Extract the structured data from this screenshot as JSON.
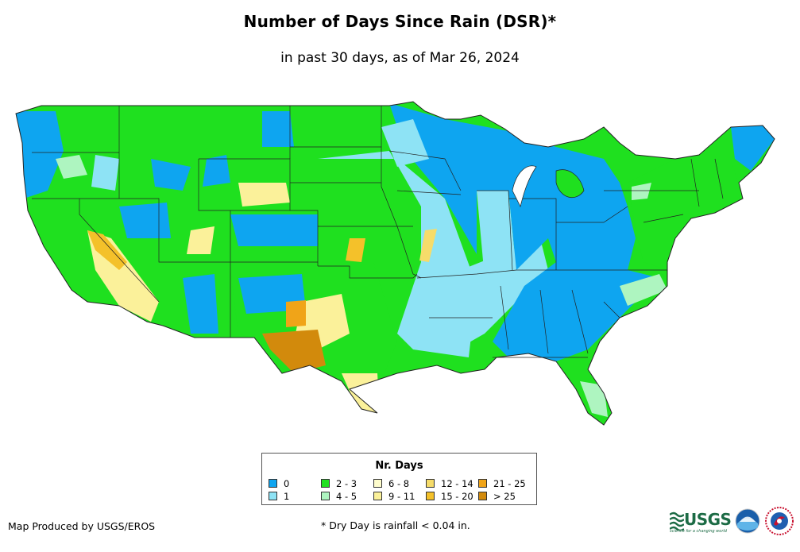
{
  "title": "Number of Days Since Rain (DSR)*",
  "subtitle": "in past 30 days, as of Mar 26, 2024",
  "legend": {
    "title": "Nr. Days",
    "items": [
      {
        "label": "0",
        "color": "#0ea5f0"
      },
      {
        "label": "1",
        "color": "#8ee3f5"
      },
      {
        "label": "2 - 3",
        "color": "#1fe01f"
      },
      {
        "label": "4 - 5",
        "color": "#aef5c0"
      },
      {
        "label": "6 - 8",
        "color": "#fefccc"
      },
      {
        "label": "9 - 11",
        "color": "#fbf19a"
      },
      {
        "label": "12 - 14",
        "color": "#f6dc6a"
      },
      {
        "label": "15 - 20",
        "color": "#f4c12a"
      },
      {
        "label": "21 - 25",
        "color": "#f0a418"
      },
      {
        "label": "> 25",
        "color": "#d28a0c"
      }
    ]
  },
  "credit": "Map Produced by USGS/EROS",
  "footnote": "* Dry Day is rainfall < 0.04 in.",
  "logos": {
    "usgs": "USGS",
    "usgs_tagline": "science for a changing world",
    "noaa_icon": "noaa-logo-icon",
    "nws_icon": "nws-logo-icon"
  }
}
